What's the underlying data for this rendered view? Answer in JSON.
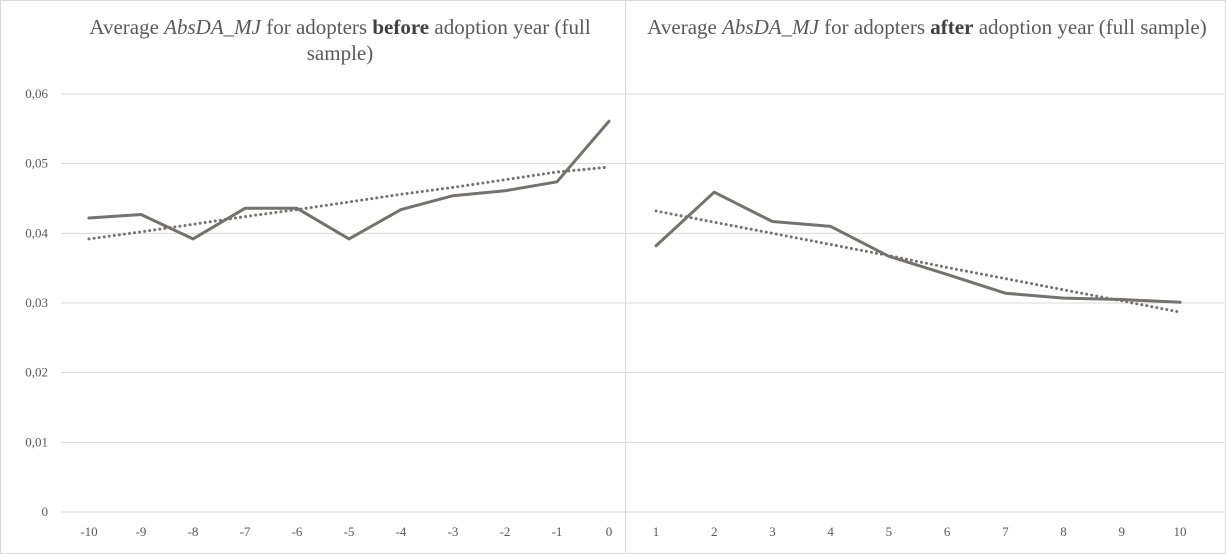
{
  "chart_data": [
    {
      "type": "line",
      "title_parts": [
        "Average ",
        "AbsDA_MJ",
        " for adopters ",
        "before",
        " adoption year (full sample)"
      ],
      "categories": [
        "-10",
        "-9",
        "-8",
        "-7",
        "-6",
        "-5",
        "-4",
        "-3",
        "-2",
        "-1",
        "0"
      ],
      "series": [
        {
          "values": [
            0.0422,
            0.0427,
            0.0392,
            0.0436,
            0.0436,
            0.0392,
            0.0434,
            0.0454,
            0.0461,
            0.0474,
            0.0561
          ],
          "style": "solid"
        },
        {
          "values": [
            0.0392,
            0.0402,
            0.0413,
            0.0424,
            0.0434,
            0.0445,
            0.0456,
            0.0466,
            0.0477,
            0.0488,
            0.0495
          ],
          "style": "dotted",
          "role": "trendline"
        }
      ],
      "y_ticks": [
        "0",
        "0,01",
        "0,02",
        "0,03",
        "0,04",
        "0,05",
        "0,06"
      ],
      "ylim": [
        0,
        0.06
      ],
      "grid": true
    },
    {
      "type": "line",
      "title_parts": [
        "Average ",
        "AbsDA_MJ",
        " for adopters ",
        "after",
        " adoption year (full sample)"
      ],
      "categories": [
        "1",
        "2",
        "3",
        "4",
        "5",
        "6",
        "7",
        "8",
        "9",
        "10"
      ],
      "series": [
        {
          "values": [
            0.0382,
            0.0459,
            0.0417,
            0.041,
            0.0367,
            0.0341,
            0.0314,
            0.0307,
            0.0305,
            0.0301
          ],
          "style": "solid"
        },
        {
          "values": [
            0.0432,
            0.0416,
            0.04,
            0.0384,
            0.0368,
            0.0351,
            0.0335,
            0.0319,
            0.0303,
            0.0287
          ],
          "style": "dotted",
          "role": "trendline"
        }
      ],
      "ylim": [
        0,
        0.06
      ],
      "grid": true
    }
  ],
  "colors": {
    "series": "#767171",
    "grid": "#d9d9d9",
    "text": "#595959"
  }
}
